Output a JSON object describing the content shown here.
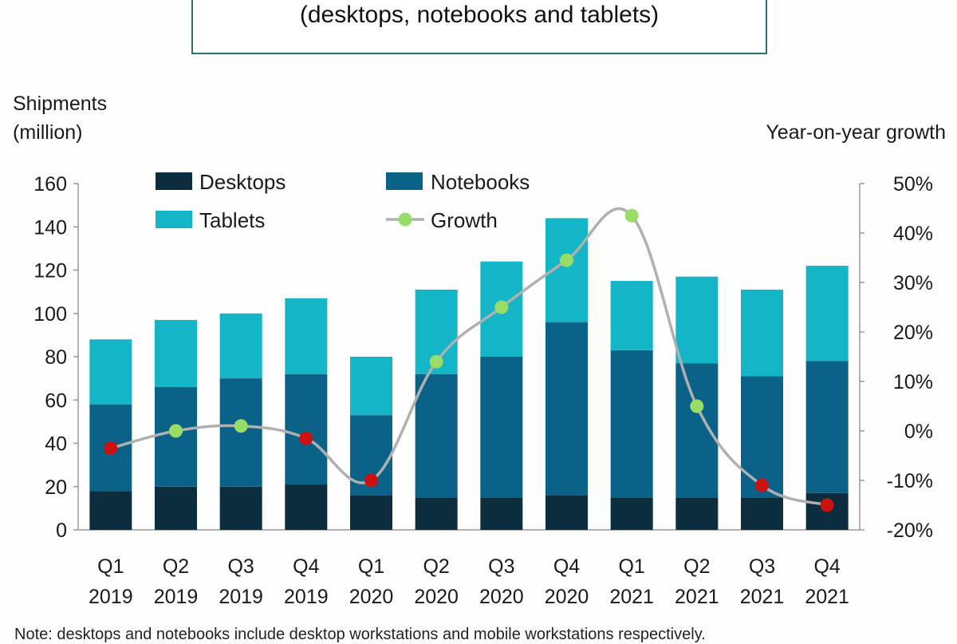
{
  "header": {
    "subtitle": "(desktops, notebooks and tablets)"
  },
  "axes": {
    "left_title_line1": "Shipments",
    "left_title_line2": "(million)",
    "right_title": "Year-on-year growth"
  },
  "footnote": "Note: desktops and notebooks include desktop workstations and mobile workstations respectively.",
  "colors": {
    "desktops": "#0b2d3d",
    "notebooks": "#0a6288",
    "tablets": "#13b5c6",
    "growth_line": "#b0b0b0",
    "growth_marker_positive": "#99dd66",
    "growth_marker_negative": "#cc1111",
    "axis": "#999999"
  },
  "chart_data": {
    "type": "bar",
    "stacked": true,
    "categories": [
      "Q1 2019",
      "Q2 2019",
      "Q3 2019",
      "Q4 2019",
      "Q1 2020",
      "Q2 2020",
      "Q3 2020",
      "Q4 2020",
      "Q1 2021",
      "Q2 2021",
      "Q3 2021",
      "Q4 2021"
    ],
    "category_lines": [
      [
        "Q1",
        "2019"
      ],
      [
        "Q2",
        "2019"
      ],
      [
        "Q3",
        "2019"
      ],
      [
        "Q4",
        "2019"
      ],
      [
        "Q1",
        "2020"
      ],
      [
        "Q2",
        "2020"
      ],
      [
        "Q3",
        "2020"
      ],
      [
        "Q4",
        "2020"
      ],
      [
        "Q1",
        "2021"
      ],
      [
        "Q2",
        "2021"
      ],
      [
        "Q3",
        "2021"
      ],
      [
        "Q4",
        "2021"
      ]
    ],
    "series": [
      {
        "name": "Desktops",
        "values": [
          18,
          20,
          20,
          21,
          16,
          15,
          15,
          16,
          15,
          15,
          15,
          17
        ]
      },
      {
        "name": "Notebooks",
        "values": [
          40,
          46,
          50,
          51,
          37,
          57,
          65,
          80,
          68,
          62,
          56,
          61
        ]
      },
      {
        "name": "Tablets",
        "values": [
          30,
          31,
          30,
          35,
          27,
          39,
          44,
          48,
          32,
          40,
          40,
          44
        ]
      }
    ],
    "line_series": {
      "name": "Growth",
      "axis": "right",
      "values": [
        -3.5,
        0,
        1,
        -1.5,
        -10,
        14,
        25,
        34.5,
        43.5,
        5,
        -11,
        -15
      ]
    },
    "y_left": {
      "min": 0,
      "max": 160,
      "ticks": [
        "0",
        "20",
        "40",
        "60",
        "80",
        "100",
        "120",
        "140",
        "160"
      ]
    },
    "y_right": {
      "min": -20,
      "max": 50,
      "ticks": [
        "-20%",
        "-10%",
        "0%",
        "10%",
        "20%",
        "30%",
        "40%",
        "50%"
      ]
    },
    "legend": {
      "placement": "top-left",
      "items": [
        "Desktops",
        "Notebooks",
        "Tablets",
        "Growth"
      ]
    },
    "grid": false
  }
}
